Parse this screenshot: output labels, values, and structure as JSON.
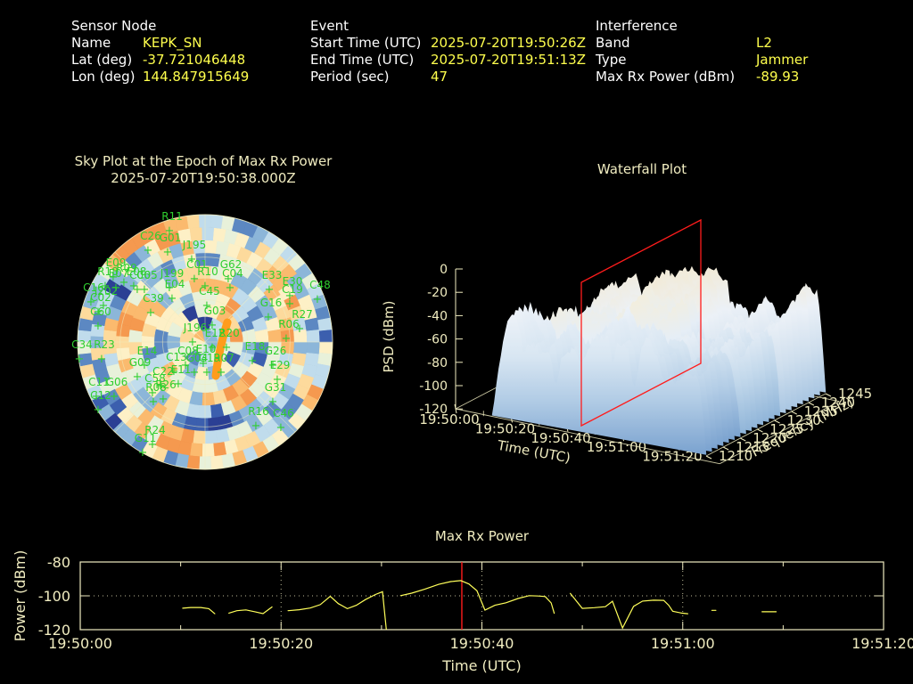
{
  "header": {
    "sensor": {
      "title": "Sensor Node",
      "rows": [
        {
          "label": "Name",
          "value": "KEPK_SN"
        },
        {
          "label": "Lat (deg)",
          "value": "-37.721046448"
        },
        {
          "label": "Lon (deg)",
          "value": "144.847915649"
        }
      ]
    },
    "event": {
      "title": "Event",
      "rows": [
        {
          "label": "Start Time (UTC)",
          "value": "2025-07-20T19:50:26Z"
        },
        {
          "label": "End Time (UTC)",
          "value": "2025-07-20T19:51:13Z"
        },
        {
          "label": "Period (sec)",
          "value": "47"
        }
      ]
    },
    "interference": {
      "title": "Interference",
      "rows": [
        {
          "label": "Band",
          "value": "L2"
        },
        {
          "label": "Type",
          "value": "Jammer"
        },
        {
          "label": "Max Rx Power (dBm)",
          "value": "-89.93"
        }
      ]
    }
  },
  "colors": {
    "background": "#000000",
    "text_white": "#ffffff",
    "value_yellow": "#ffff4d",
    "plot_cream": "#f0ecc0",
    "sat_green": "#2fcf2f",
    "marker_red": "#ff1c1c",
    "streak_orange": "#ff9c1c",
    "trace_yellow": "#ffff5a"
  },
  "chart_data": [
    {
      "type": "heatmap",
      "projection": "polar",
      "title": "Sky Plot at the Epoch of Max Rx Power",
      "subtitle": "2025-07-20T19:50:38.000Z",
      "rings": 10,
      "seed": 7,
      "palette": [
        "#2b3f94",
        "#3c5fae",
        "#5c88c2",
        "#8cb6d9",
        "#c0dcec",
        "#e8f1da",
        "#fdf0c6",
        "#fdda9c",
        "#fbba6e",
        "#f5994f"
      ],
      "grid_rings": 3,
      "spokes_deg": 45,
      "heading_marker": {
        "from": [
          170,
          126
        ],
        "to": [
          157,
          186
        ],
        "color": "#ff9c1c"
      },
      "satellites": [
        [
          "R11",
          108,
          16
        ],
        [
          "C26",
          84,
          38
        ],
        [
          "G01",
          106,
          40
        ],
        [
          "J195",
          133,
          48
        ],
        [
          "E09",
          45,
          68
        ],
        [
          "R09",
          57,
          74
        ],
        [
          "R18",
          36,
          78
        ],
        [
          "E07",
          48,
          80
        ],
        [
          "E08",
          68,
          78
        ],
        [
          "C06",
          72,
          82
        ],
        [
          "C05",
          80,
          82
        ],
        [
          "J199",
          108,
          80
        ],
        [
          "C01",
          136,
          70
        ],
        [
          "R10",
          148,
          78
        ],
        [
          "G62",
          174,
          70
        ],
        [
          "C04",
          176,
          80
        ],
        [
          "C45",
          150,
          100
        ],
        [
          "E33",
          220,
          82
        ],
        [
          "E30",
          243,
          89
        ],
        [
          "C19",
          243,
          98
        ],
        [
          "C48",
          274,
          93
        ],
        [
          "C16",
          20,
          96
        ],
        [
          "J202",
          34,
          100
        ],
        [
          "C02",
          28,
          107
        ],
        [
          "C60",
          28,
          123
        ],
        [
          "E04",
          111,
          92
        ],
        [
          "C39",
          87,
          108
        ],
        [
          "G03",
          156,
          122
        ],
        [
          "G16",
          219,
          113
        ],
        [
          "R27",
          254,
          126
        ],
        [
          "R06",
          239,
          137
        ],
        [
          "C34",
          7,
          160
        ],
        [
          "R23",
          32,
          160
        ],
        [
          "J196",
          134,
          141
        ],
        [
          "E12",
          156,
          147
        ],
        [
          "R20",
          172,
          147
        ],
        [
          "E10",
          146,
          165
        ],
        [
          "C08",
          126,
          167
        ],
        [
          "C13",
          113,
          174
        ],
        [
          "G04",
          136,
          175
        ],
        [
          "G19",
          150,
          175
        ],
        [
          "R07",
          166,
          175
        ],
        [
          "E18",
          201,
          162
        ],
        [
          "G26",
          224,
          167
        ],
        [
          "E29",
          229,
          183
        ],
        [
          "E14",
          80,
          167
        ],
        [
          "G09",
          72,
          180
        ],
        [
          "E11",
          118,
          188
        ],
        [
          "C22",
          98,
          190
        ],
        [
          "C58",
          89,
          198
        ],
        [
          "G06",
          46,
          202
        ],
        [
          "C11",
          26,
          202
        ],
        [
          "R08",
          90,
          208
        ],
        [
          "R26",
          101,
          205
        ],
        [
          "C12",
          28,
          217
        ],
        [
          "G31",
          224,
          208
        ],
        [
          "R16",
          205,
          235
        ],
        [
          "C46",
          233,
          237
        ],
        [
          "R24",
          89,
          256
        ],
        [
          "G11",
          78,
          265
        ]
      ]
    },
    {
      "type": "surface3d",
      "title": "Waterfall Plot",
      "z_axis": {
        "label": "PSD (dBm)",
        "ticks": [
          "0",
          "-20",
          "-40",
          "-60",
          "-80",
          "-100",
          "-120"
        ],
        "range": [
          -120,
          0
        ]
      },
      "t_axis": {
        "label": "Time (UTC)",
        "ticks": [
          "19:50:00",
          "19:50:20",
          "19:50:40",
          "19:51:00",
          "19:51:20"
        ],
        "range_sec": [
          0,
          80
        ]
      },
      "f_axis": {
        "label": "Frequency (MHz)",
        "ticks": [
          "1210",
          "1215",
          "1220",
          "1225",
          "1230",
          "1235",
          "1240",
          "1245"
        ],
        "range": [
          1210,
          1245
        ]
      },
      "slice_time": "19:50:38",
      "surface": {
        "t_start_sec": 11,
        "t_end_sec": 76,
        "psd_floor_dbm": -120,
        "psd_plateau_dbm": -40,
        "layers": 22,
        "seed": 11
      }
    },
    {
      "type": "line",
      "title": "Max Rx Power",
      "xlabel": "Time (UTC)",
      "ylabel": "Power (dBm)",
      "y_ticks": [
        "-80",
        "-100",
        "-120"
      ],
      "ylim": [
        -120,
        -80
      ],
      "x_ticks": [
        "19:50:00",
        "19:50:20",
        "19:50:40",
        "19:51:00",
        "19:51:20"
      ],
      "xlim_sec": [
        0,
        80
      ],
      "x_minor_interval_sec": 10,
      "grid_y_dbm": -100,
      "marker_time_sec": 38,
      "segments_t_dbm": [
        [
          [
            10.2,
            -107.3
          ],
          [
            11.0,
            -106.9
          ],
          [
            12.0,
            -106.9
          ],
          [
            12.8,
            -107.6
          ],
          [
            13.4,
            -110.6
          ]
        ],
        [
          [
            14.8,
            -110.2
          ],
          [
            15.6,
            -108.8
          ],
          [
            16.5,
            -108.3
          ],
          [
            17.4,
            -109.4
          ],
          [
            18.2,
            -110.5
          ],
          [
            19.1,
            -106.6
          ]
        ],
        [
          [
            20.7,
            -108.8
          ],
          [
            21.8,
            -108.2
          ],
          [
            22.9,
            -107.2
          ],
          [
            23.9,
            -105.2
          ],
          [
            24.9,
            -100.3
          ],
          [
            25.7,
            -104.6
          ],
          [
            26.6,
            -107.6
          ],
          [
            27.5,
            -105.6
          ],
          [
            28.4,
            -102.2
          ],
          [
            29.4,
            -99.2
          ],
          [
            30.1,
            -97.6
          ],
          [
            30.5,
            -121.0
          ]
        ],
        [
          [
            31.9,
            -99.9
          ],
          [
            33.0,
            -98.4
          ],
          [
            34.3,
            -96.1
          ],
          [
            35.7,
            -93.2
          ],
          [
            36.9,
            -91.6
          ],
          [
            37.9,
            -91.0
          ],
          [
            38.7,
            -93.0
          ],
          [
            39.5,
            -97.0
          ],
          [
            40.3,
            -108.4
          ],
          [
            41.3,
            -105.6
          ],
          [
            42.4,
            -104.1
          ],
          [
            43.6,
            -101.6
          ],
          [
            44.7,
            -99.9
          ],
          [
            45.6,
            -100.1
          ],
          [
            46.3,
            -100.4
          ],
          [
            46.9,
            -104.2
          ],
          [
            47.2,
            -110.3
          ]
        ],
        [
          [
            48.8,
            -98.6
          ],
          [
            50.0,
            -107.4
          ],
          [
            51.2,
            -107.0
          ],
          [
            52.3,
            -106.4
          ],
          [
            53.0,
            -103.2
          ],
          [
            54.0,
            -119.0
          ],
          [
            55.1,
            -106.2
          ],
          [
            56.0,
            -103.1
          ],
          [
            57.1,
            -102.6
          ],
          [
            58.1,
            -102.7
          ],
          [
            58.6,
            -105.6
          ],
          [
            59.0,
            -109.1
          ],
          [
            59.9,
            -110.2
          ],
          [
            60.5,
            -110.6
          ]
        ],
        [
          [
            62.9,
            -108.6
          ],
          [
            63.3,
            -108.6
          ]
        ],
        [
          [
            67.9,
            -109.4
          ],
          [
            69.3,
            -109.4
          ]
        ]
      ]
    }
  ]
}
